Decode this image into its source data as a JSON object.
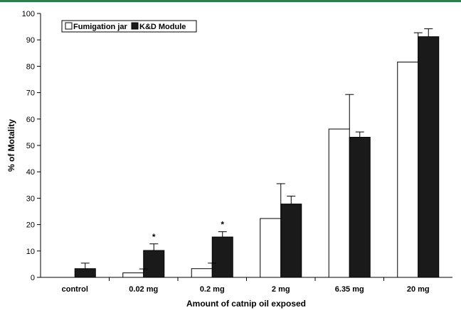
{
  "chart_data": {
    "type": "bar",
    "categories": [
      "control",
      "0.02 mg",
      "0.2 mg",
      "2 mg",
      "6.35 mg",
      "20 mg"
    ],
    "series": [
      {
        "name": "Fumigation jar",
        "values": [
          0,
          1.7,
          3.3,
          22.3,
          56.2,
          81.6
        ],
        "errors": [
          0,
          1.5,
          2.1,
          13.2,
          13.1,
          11.1
        ],
        "color": "#ffffff"
      },
      {
        "name": "K&D Module",
        "values": [
          3.3,
          10.2,
          15.3,
          27.8,
          53.1,
          91.2
        ],
        "errors": [
          2.1,
          2.5,
          2.0,
          3.0,
          2.0,
          3.0
        ],
        "color": "#1a1a1a"
      }
    ],
    "annotations": [
      {
        "category": "0.02 mg",
        "series": "K&D Module",
        "text": "*"
      },
      {
        "category": "0.2 mg",
        "series": "K&D Module",
        "text": "*"
      }
    ],
    "xlabel": "Amount of catnip oil exposed",
    "ylabel": "% of Motality",
    "ylim": [
      0,
      100
    ],
    "yticks": [
      0,
      10,
      20,
      30,
      40,
      50,
      60,
      70,
      80,
      90,
      100
    ],
    "legend_position": "top-left",
    "grid": false
  }
}
